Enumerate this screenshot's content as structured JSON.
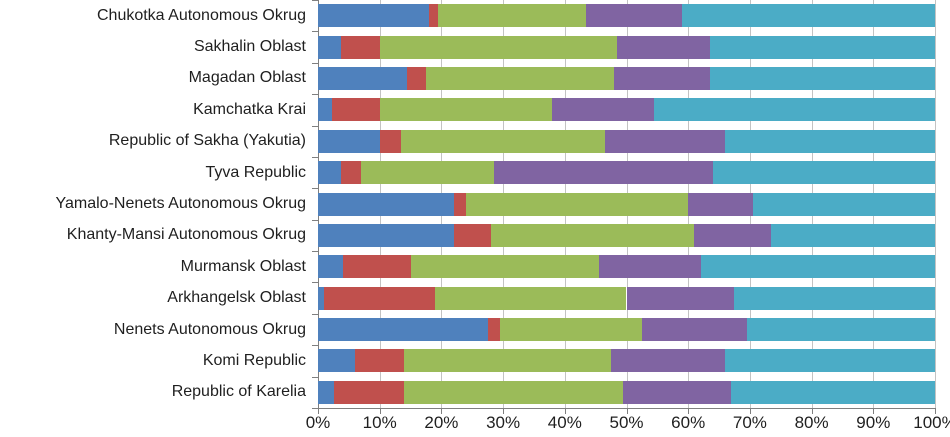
{
  "chart_data": {
    "type": "bar",
    "orientation": "horizontal",
    "stacked": true,
    "title": "",
    "xlabel": "",
    "ylabel": "",
    "xlim": [
      0,
      100
    ],
    "grid": true,
    "legend": "none",
    "x_axis_ticks": [
      "0%",
      "10%",
      "20%",
      "30%",
      "40%",
      "50%",
      "60%",
      "70%",
      "80%",
      "90%",
      "100%"
    ],
    "categories": [
      "Chukotka Autonomous Okrug",
      "Sakhalin Oblast",
      "Magadan Oblast",
      "Kamchatka Krai",
      "Republic of Sakha (Yakutia)",
      "Tyva Republic",
      "Yamalo-Nenets Autonomous Okrug",
      "Khanty-Mansi Autonomous Okrug",
      "Murmansk Oblast",
      "Arkhangelsk Oblast",
      "Nenets Autonomous Okrug",
      "Komi Republic",
      "Republic of Karelia"
    ],
    "series": [
      {
        "name": "blue-segment",
        "color": "#4F81BD",
        "values": [
          18.0,
          3.7,
          14.5,
          2.3,
          10.0,
          3.8,
          22.0,
          22.0,
          4.0,
          1.0,
          27.5,
          6.0,
          2.6
        ]
      },
      {
        "name": "red-segment",
        "color": "#C0504D",
        "values": [
          1.5,
          6.3,
          3.0,
          7.7,
          3.5,
          3.2,
          2.0,
          6.0,
          11.0,
          18.0,
          2.0,
          8.0,
          11.4
        ]
      },
      {
        "name": "green-segment",
        "color": "#9BBB59",
        "values": [
          24.0,
          38.5,
          30.5,
          28.0,
          33.0,
          21.5,
          36.0,
          33.0,
          30.5,
          31.0,
          23.0,
          33.5,
          35.5
        ]
      },
      {
        "name": "purple-segment",
        "color": "#8064A2",
        "values": [
          15.5,
          15.0,
          15.5,
          16.5,
          19.5,
          35.5,
          10.5,
          12.5,
          16.5,
          17.5,
          17.0,
          18.5,
          17.5
        ]
      },
      {
        "name": "teal-segment",
        "color": "#4BACC6",
        "values": [
          41.0,
          36.5,
          36.5,
          45.5,
          34.0,
          36.0,
          29.5,
          26.5,
          38.0,
          32.5,
          30.5,
          34.0,
          33.0
        ]
      }
    ],
    "style_colors": {
      "gridline": "#c3c3c3",
      "axis": "#7f7f7f",
      "text": "#1f1f1f",
      "background": "#ffffff"
    }
  }
}
